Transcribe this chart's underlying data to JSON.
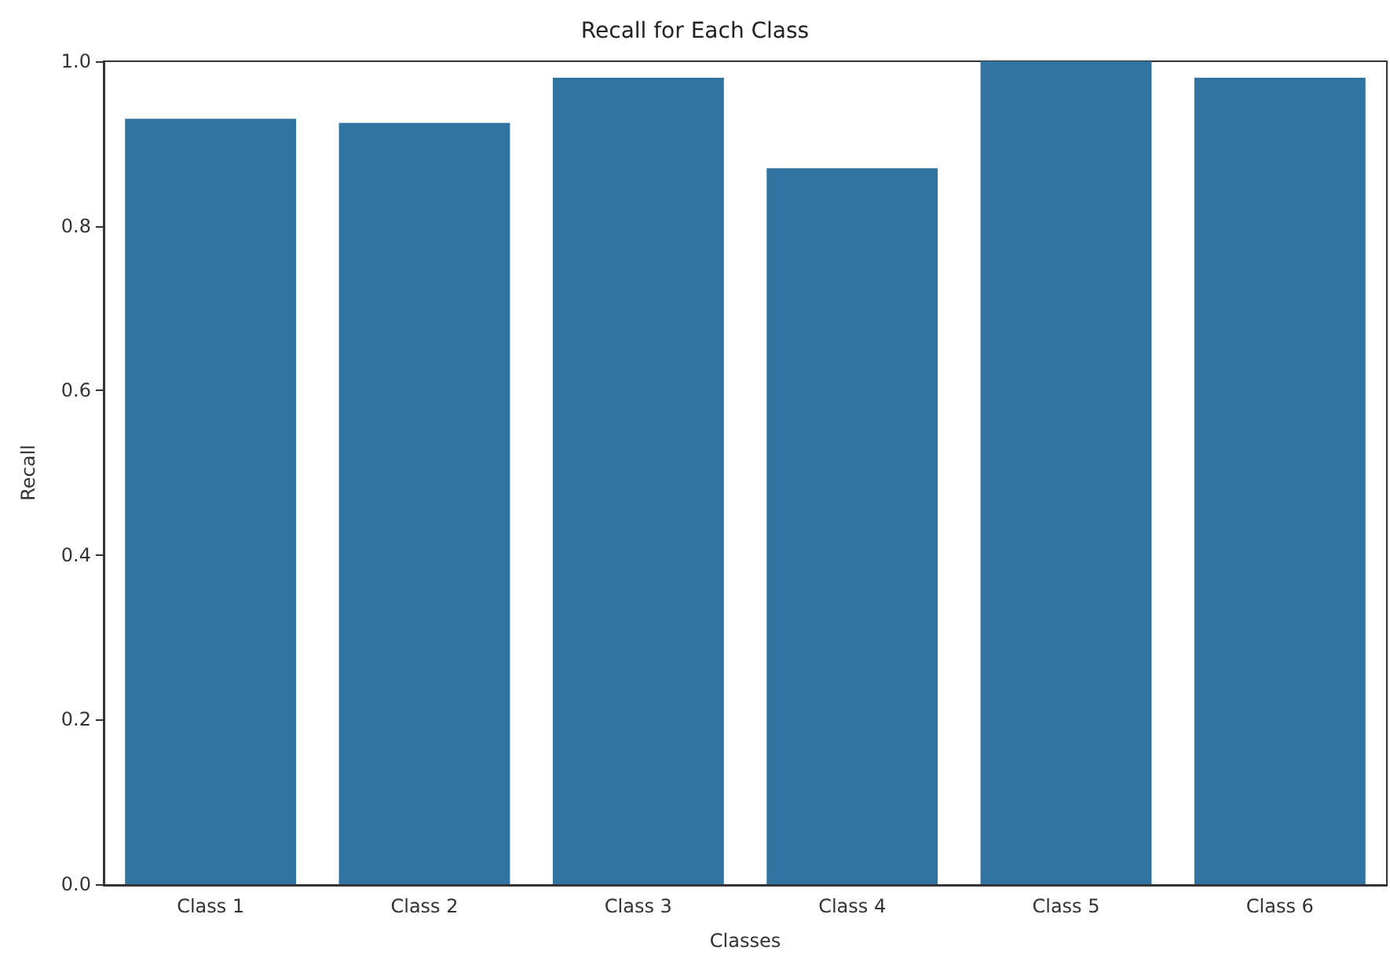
{
  "chart_data": {
    "type": "bar",
    "title": "Recall for Each Class",
    "xlabel": "Classes",
    "ylabel": "Recall",
    "categories": [
      "Class 1",
      "Class 2",
      "Class 3",
      "Class 4",
      "Class 5",
      "Class 6"
    ],
    "values": [
      0.93,
      0.925,
      0.98,
      0.87,
      1.0,
      0.98
    ],
    "color": "#3274a1",
    "ylim": [
      0,
      1
    ],
    "yticks": [
      {
        "value": 0,
        "label": "0.0"
      },
      0.2,
      0.4,
      0.6,
      0.8,
      {
        "value": 1,
        "label": "1.0"
      }
    ],
    "grid": false
  }
}
